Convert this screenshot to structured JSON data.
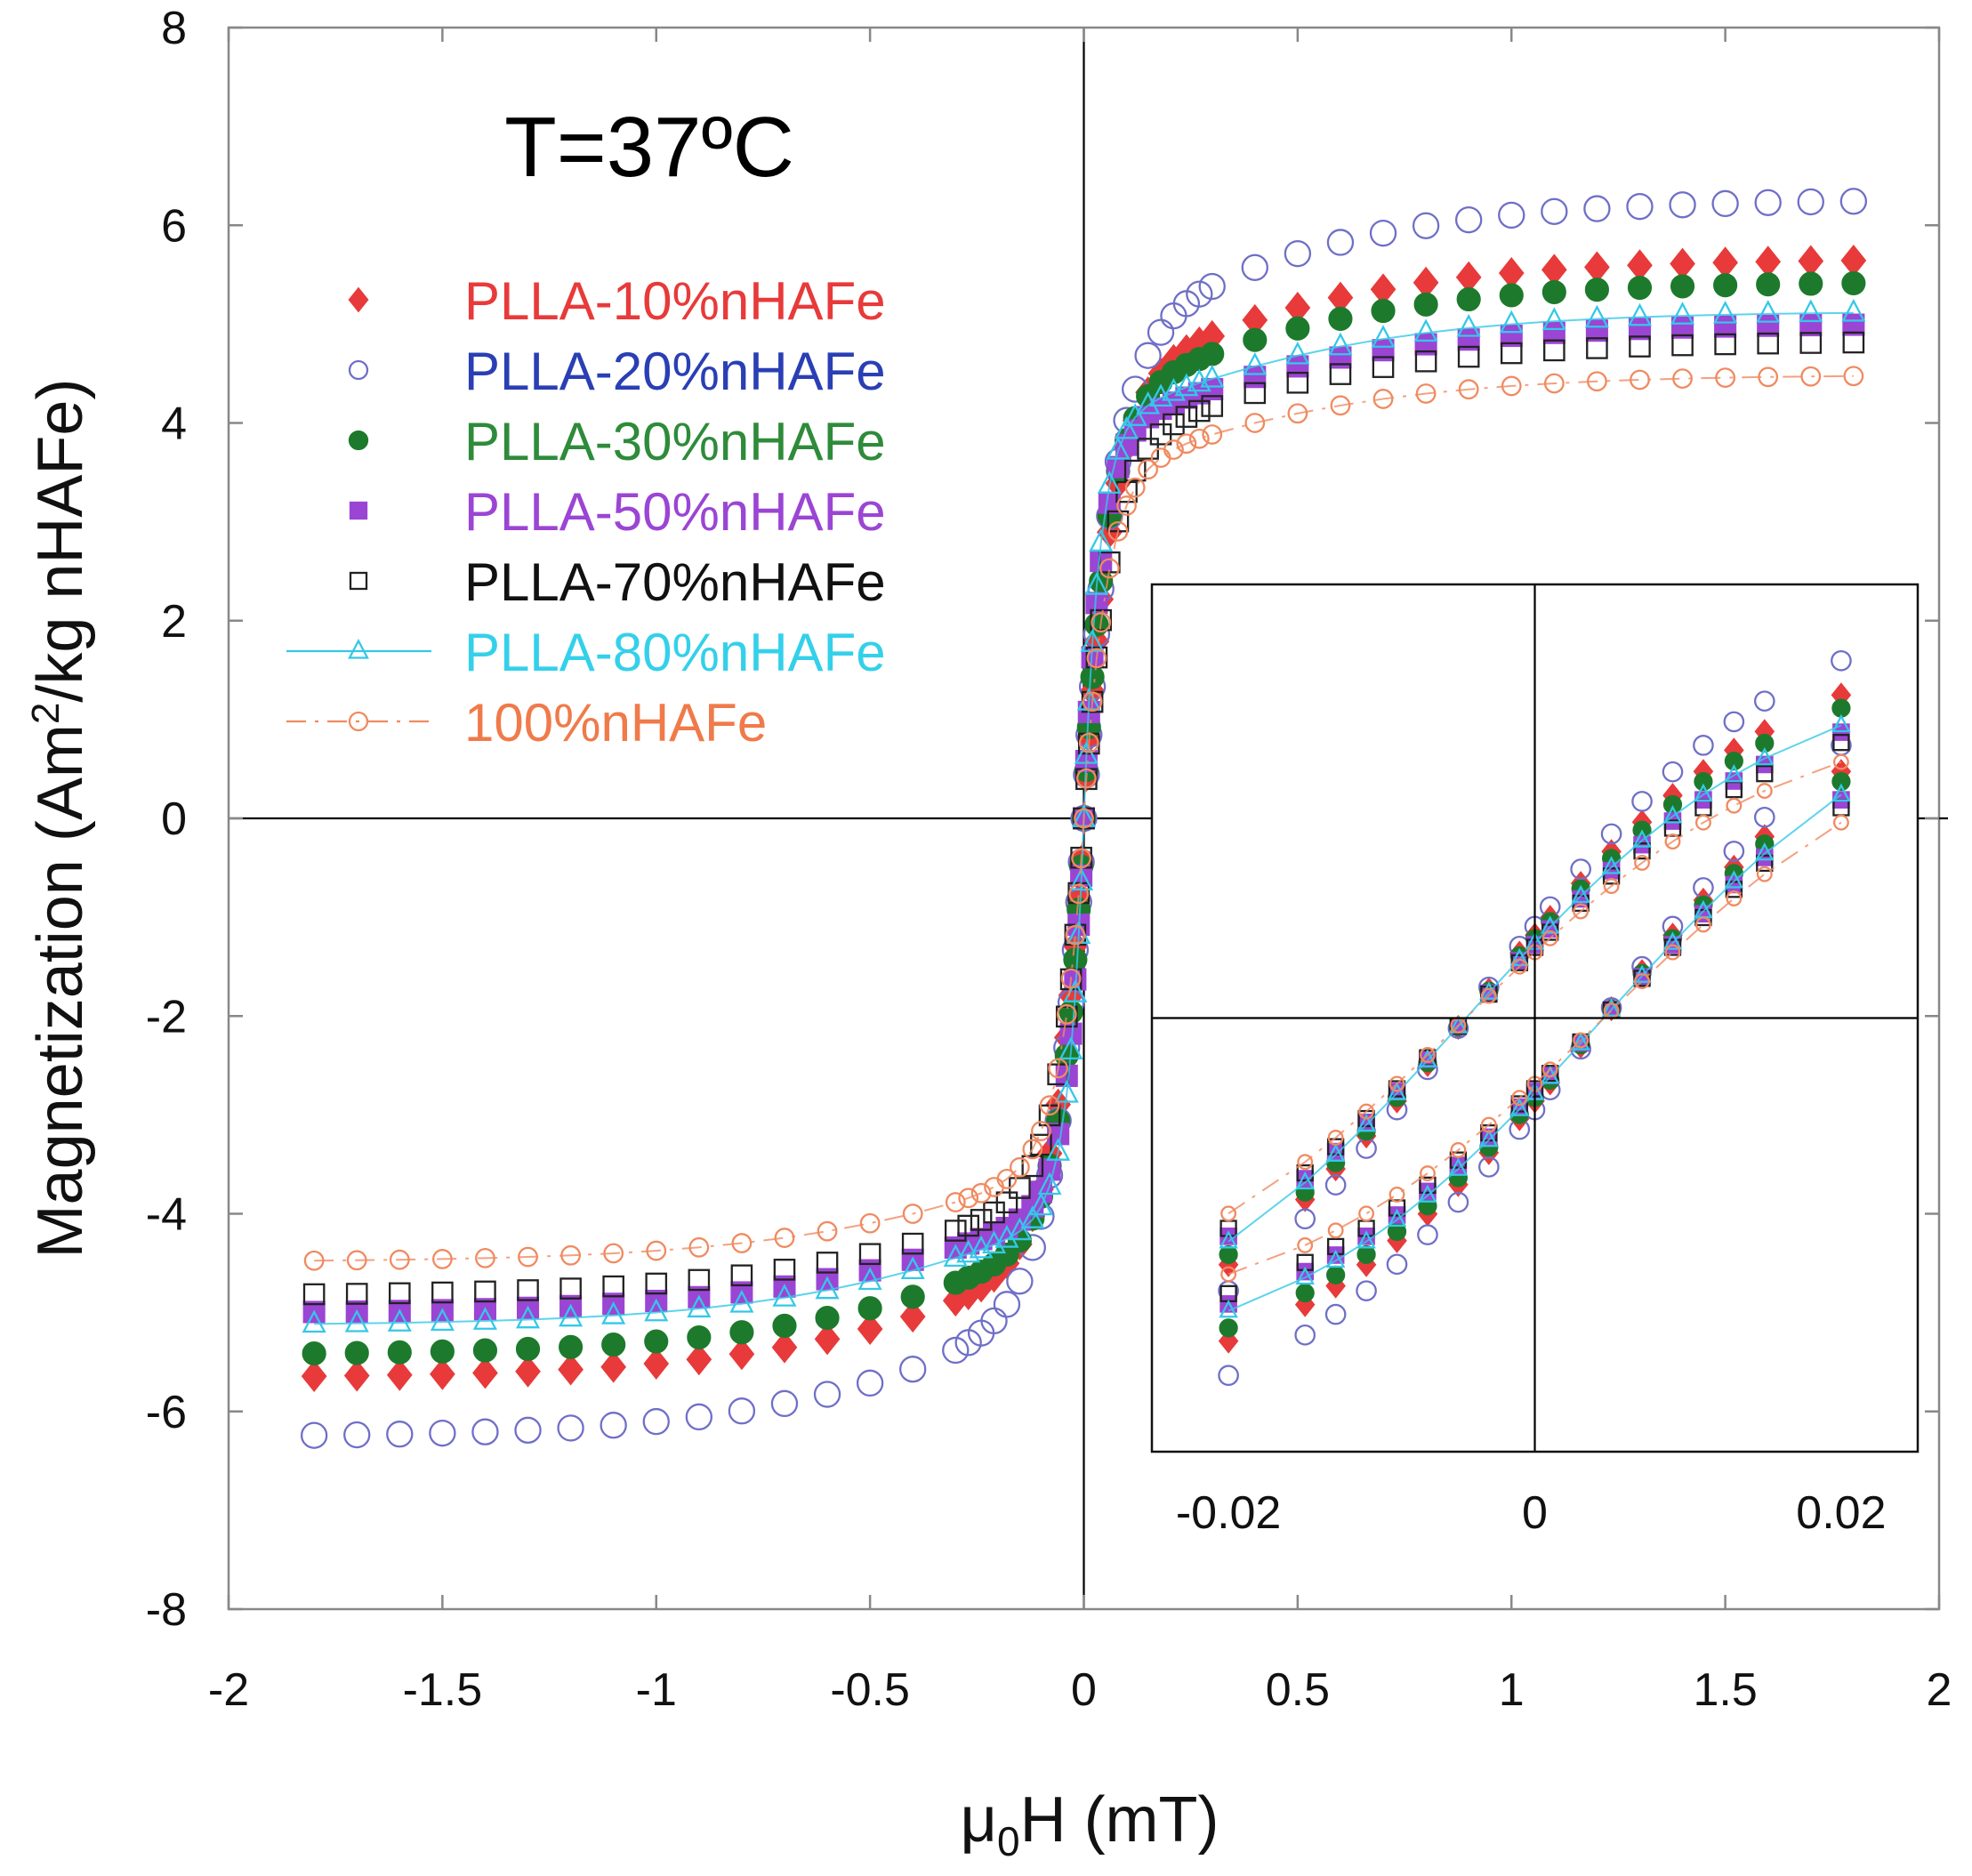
{
  "chart_data": {
    "type": "scatter",
    "annotation": "T=37ºC",
    "xlabel_mu": "μ",
    "xlabel_sub": "0",
    "xlabel_rest": "H (mT)",
    "ylabel_pre": "Magnetization (Am",
    "ylabel_sup": "2",
    "ylabel_post": "/kg nHAFe",
    "xlim": [
      -2,
      2
    ],
    "ylim": [
      -8,
      8
    ],
    "xticks": [
      -2,
      -1.5,
      -1,
      -0.5,
      0,
      0.5,
      1,
      1.5,
      2
    ],
    "xtick_labels": [
      "-2",
      "-1.5",
      "-1",
      "-0.5",
      "0",
      "0.5",
      "1",
      "1.5",
      "2"
    ],
    "yticks": [
      -8,
      -6,
      -4,
      -2,
      0,
      2,
      4,
      6,
      8
    ],
    "ytick_labels": [
      "-8",
      "-6",
      "-4",
      "-2",
      "0",
      "2",
      "4",
      "6",
      "8"
    ],
    "legend_position": "upper-left",
    "series": [
      {
        "name": "PLLA-10%nHAFe",
        "color": "#e83a3a",
        "text_color": "#e83a3a",
        "marker": "diamond",
        "filled": true,
        "line": false,
        "ms": 5.6,
        "h0": 0.022,
        "k": 0.06
      },
      {
        "name": "PLLA-20%nHAFe",
        "color": "#6f6fc8",
        "text_color": "#2a3fb4",
        "marker": "circle",
        "filled": false,
        "line": false,
        "ms": 6.1,
        "h0": 0.03,
        "k": 0.065
      },
      {
        "name": "PLLA-30%nHAFe",
        "color": "#1d7a2c",
        "text_color": "#2e8b3a",
        "marker": "circle",
        "filled": true,
        "line": false,
        "ms": 5.4,
        "h0": 0.022,
        "k": 0.05
      },
      {
        "name": "PLLA-50%nHAFe",
        "color": "#9b45d4",
        "text_color": "#9b45d4",
        "marker": "square",
        "filled": true,
        "line": false,
        "ms": 4.95,
        "h0": 0.018,
        "k": 0.038
      },
      {
        "name": "PLLA-70%nHAFe",
        "color": "#222222",
        "text_color": "#111111",
        "marker": "square",
        "filled": false,
        "line": false,
        "ms": 4.85,
        "h0": 0.03,
        "k": 0.055
      },
      {
        "name": "PLLA-80%nHAFe",
        "color": "#34c8e8",
        "text_color": "#34d0ea",
        "marker": "triangle",
        "filled": false,
        "line": true,
        "dash": "",
        "ms": 5.05,
        "h0": 0.018,
        "k": 0.035
      },
      {
        "name": "100%nHAFe",
        "color": "#f08a60",
        "text_color": "#f07a4a",
        "marker": "circle",
        "filled": false,
        "line": true,
        "dash": "22,10,4,10",
        "ms": 4.45,
        "h0": 0.022,
        "k": 0.05
      }
    ],
    "x_samples": [
      -1.8,
      -1.7,
      -1.6,
      -1.5,
      -1.4,
      -1.3,
      -1.2,
      -1.1,
      -1.0,
      -0.9,
      -0.8,
      -0.7,
      -0.6,
      -0.5,
      -0.4,
      -0.3,
      -0.27,
      -0.24,
      -0.21,
      -0.18,
      -0.15,
      -0.12,
      -0.1,
      -0.08,
      -0.06,
      -0.04,
      -0.03,
      -0.02,
      -0.012,
      -0.006,
      0.0,
      0.006,
      0.012,
      0.02,
      0.03,
      0.04,
      0.06,
      0.08,
      0.1,
      0.12,
      0.15,
      0.18,
      0.21,
      0.24,
      0.27,
      0.3,
      0.4,
      0.5,
      0.6,
      0.7,
      0.8,
      0.9,
      1.0,
      1.1,
      1.2,
      1.3,
      1.4,
      1.5,
      1.6,
      1.7,
      1.8
    ],
    "inset": {
      "xlim": [
        -0.025,
        0.025
      ],
      "ylim": [
        -3,
        3
      ],
      "xticks": [
        -0.02,
        0,
        0.02
      ],
      "xtick_labels": [
        "-0.02",
        "0",
        "0.02"
      ],
      "x_samples": [
        -0.02,
        -0.015,
        -0.013,
        -0.011,
        -0.009,
        -0.007,
        -0.005,
        -0.003,
        -0.001,
        0.0,
        0.001,
        0.003,
        0.005,
        0.007,
        0.009,
        0.011,
        0.013,
        0.015,
        0.02
      ]
    }
  }
}
